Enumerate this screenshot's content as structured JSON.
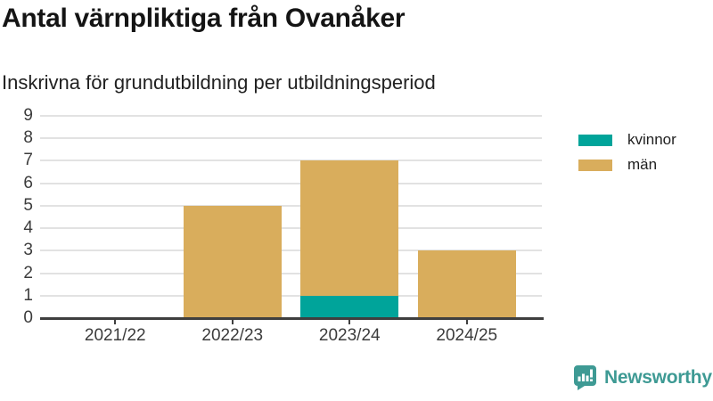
{
  "header": {
    "title": "Antal värnpliktiga från Ovanåker",
    "subtitle": "Inskrivna för grundutbildning per utbildningsperiod"
  },
  "colors": {
    "kvinnor": "#00A49A",
    "man": "#D9AD5C",
    "brand_teal": "#3E9A94",
    "gridline": "#e2e2e2",
    "axis_line": "#3f3f3f",
    "axis_text": "#3c3c3c"
  },
  "chart_data": {
    "type": "bar",
    "stacked": true,
    "title": "Antal värnpliktiga från Ovanåker",
    "subtitle": "Inskrivna för grundutbildning per utbildningsperiod",
    "categories": [
      "2021/22",
      "2022/23",
      "2023/24",
      "2024/25"
    ],
    "series": [
      {
        "name": "kvinnor",
        "color": "#00A49A",
        "values": [
          0,
          0,
          1,
          0
        ]
      },
      {
        "name": "män",
        "color": "#D9AD5C",
        "values": [
          0,
          5,
          6,
          3
        ]
      }
    ],
    "totals": [
      0,
      5,
      7,
      3
    ],
    "xlabel": "",
    "ylabel": "",
    "ylim": [
      0,
      9
    ],
    "yticks": [
      0,
      1,
      2,
      3,
      4,
      5,
      6,
      7,
      8,
      9
    ],
    "grid": true,
    "legend_position": "right"
  },
  "legend": {
    "items": [
      {
        "label": "kvinnor",
        "color": "#00A49A"
      },
      {
        "label": "män",
        "color": "#D9AD5C"
      }
    ]
  },
  "footer": {
    "brand": "Newsworthy",
    "logo_icon": "bar-chart-speech-bubble-icon"
  }
}
